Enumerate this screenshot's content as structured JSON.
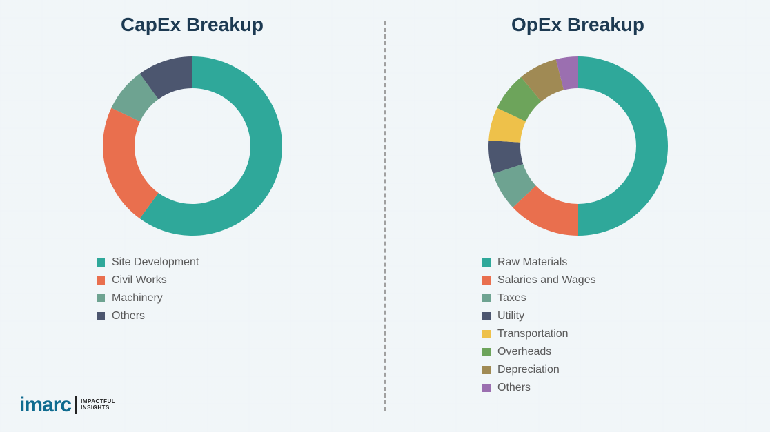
{
  "background": "#f2f6f8",
  "title_color": "#1d3a52",
  "title_fontsize": 28,
  "legend_fontsize": 16,
  "legend_color": "#5a5a5a",
  "donut_outer_radius": 130,
  "donut_inner_radius": 84,
  "divider_color": "#a0a0a0",
  "capex": {
    "title": "CapEx Breakup",
    "type": "donut",
    "slices": [
      {
        "label": "Site Development",
        "value": 60,
        "color": "#2fa89a"
      },
      {
        "label": "Civil Works",
        "value": 22,
        "color": "#e96f4e"
      },
      {
        "label": "Machinery",
        "value": 8,
        "color": "#6ea391"
      },
      {
        "label": "Others",
        "value": 10,
        "color": "#4c566f"
      }
    ]
  },
  "opex": {
    "title": "OpEx Breakup",
    "type": "donut",
    "slices": [
      {
        "label": "Raw Materials",
        "value": 50,
        "color": "#2fa89a"
      },
      {
        "label": "Salaries and Wages",
        "value": 13,
        "color": "#e96f4e"
      },
      {
        "label": "Taxes",
        "value": 7,
        "color": "#6ea391"
      },
      {
        "label": "Utility",
        "value": 6,
        "color": "#4c566f"
      },
      {
        "label": "Transportation",
        "value": 6,
        "color": "#eec14a"
      },
      {
        "label": "Overheads",
        "value": 7,
        "color": "#6da45b"
      },
      {
        "label": "Depreciation",
        "value": 7,
        "color": "#a08a54"
      },
      {
        "label": "Others",
        "value": 4,
        "color": "#9b6fb0"
      }
    ]
  },
  "logo": {
    "main": "imarc",
    "sub_line1": "IMPACTFUL",
    "sub_line2": "INSIGHTS",
    "main_color": "#0f6b8f"
  }
}
